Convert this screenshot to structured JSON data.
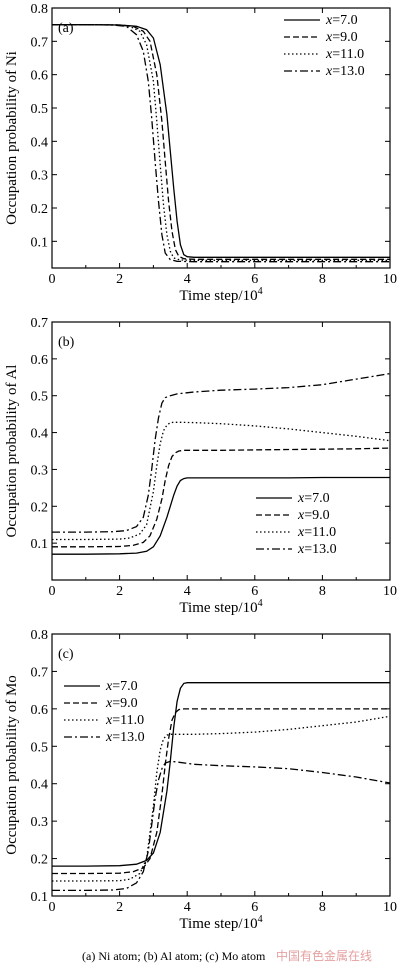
{
  "caption": "(a) Ni atom; (b) Al atom; (c) Mo atom",
  "watermark": "中国有色金属在线",
  "styles": {
    "dash_by_series": [
      "",
      "6,3",
      "1.5,2.5",
      "8,3,2,3"
    ]
  },
  "chart_data": [
    {
      "type": "line",
      "panel_label": "(a)",
      "xlabel_base": "Time step/10",
      "xlabel_exp": "4",
      "ylabel": "Occupation probability of Ni",
      "xlim": [
        0,
        10
      ],
      "ylim": [
        0.02,
        0.8
      ],
      "xticks": [
        0,
        2,
        4,
        6,
        8,
        10
      ],
      "yticks": [
        0.1,
        0.2,
        0.3,
        0.4,
        0.5,
        0.6,
        0.7,
        0.8
      ],
      "grid": false,
      "legend_position": "top-right",
      "series": [
        {
          "name_var": "x",
          "name_val": "=7.0",
          "x": [
            0,
            1,
            2,
            2.5,
            2.8,
            3.0,
            3.2,
            3.4,
            3.5,
            3.6,
            3.7,
            3.8,
            3.9,
            4.0,
            4.2,
            5,
            6,
            7,
            8,
            9,
            10
          ],
          "y": [
            0.75,
            0.75,
            0.749,
            0.745,
            0.735,
            0.71,
            0.63,
            0.48,
            0.37,
            0.26,
            0.16,
            0.09,
            0.06,
            0.054,
            0.052,
            0.052,
            0.052,
            0.052,
            0.052,
            0.052,
            0.052
          ]
        },
        {
          "name_var": "x",
          "name_val": "=9.0",
          "x": [
            0,
            1,
            2,
            2.4,
            2.7,
            2.9,
            3.1,
            3.25,
            3.35,
            3.45,
            3.55,
            3.65,
            3.75,
            3.9,
            4.2,
            5,
            6,
            7,
            8,
            9,
            10
          ],
          "y": [
            0.75,
            0.75,
            0.749,
            0.745,
            0.73,
            0.7,
            0.6,
            0.46,
            0.34,
            0.22,
            0.13,
            0.075,
            0.055,
            0.048,
            0.046,
            0.046,
            0.046,
            0.046,
            0.046,
            0.046,
            0.046
          ]
        },
        {
          "name_var": "x",
          "name_val": "=11.0",
          "x": [
            0,
            1,
            2,
            2.3,
            2.6,
            2.8,
            3.0,
            3.1,
            3.2,
            3.3,
            3.4,
            3.5,
            3.6,
            3.8,
            4.2,
            5,
            6,
            7,
            8,
            9,
            10
          ],
          "y": [
            0.75,
            0.75,
            0.749,
            0.745,
            0.73,
            0.69,
            0.58,
            0.46,
            0.33,
            0.21,
            0.12,
            0.07,
            0.05,
            0.044,
            0.043,
            0.043,
            0.043,
            0.043,
            0.043,
            0.043,
            0.043
          ]
        },
        {
          "name_var": "x",
          "name_val": "=13.0",
          "x": [
            0,
            1,
            1.8,
            2.2,
            2.5,
            2.7,
            2.85,
            2.95,
            3.05,
            3.15,
            3.25,
            3.35,
            3.5,
            3.7,
            4.2,
            5,
            6,
            7,
            8,
            9,
            10
          ],
          "y": [
            0.75,
            0.75,
            0.749,
            0.745,
            0.72,
            0.67,
            0.58,
            0.47,
            0.34,
            0.22,
            0.12,
            0.065,
            0.045,
            0.04,
            0.039,
            0.039,
            0.039,
            0.039,
            0.039,
            0.039,
            0.039
          ]
        }
      ]
    },
    {
      "type": "line",
      "panel_label": "(b)",
      "xlabel_base": "Time step/10",
      "xlabel_exp": "4",
      "ylabel": "Occupation probability of Al",
      "xlim": [
        0,
        10
      ],
      "ylim": [
        0.0,
        0.7
      ],
      "xticks": [
        0,
        2,
        4,
        6,
        8,
        10
      ],
      "yticks": [
        0.1,
        0.2,
        0.3,
        0.4,
        0.5,
        0.6,
        0.7
      ],
      "grid": false,
      "legend_position": "bottom-right",
      "series": [
        {
          "name_var": "x",
          "name_val": "=7.0",
          "x": [
            0,
            1,
            2,
            2.5,
            2.8,
            3.0,
            3.2,
            3.4,
            3.5,
            3.6,
            3.7,
            3.8,
            3.9,
            4.0,
            4.2,
            5,
            6,
            7,
            8,
            9,
            10
          ],
          "y": [
            0.07,
            0.07,
            0.071,
            0.073,
            0.078,
            0.09,
            0.12,
            0.17,
            0.2,
            0.23,
            0.255,
            0.27,
            0.275,
            0.277,
            0.277,
            0.277,
            0.277,
            0.277,
            0.278,
            0.278,
            0.278
          ]
        },
        {
          "name_var": "x",
          "name_val": "=9.0",
          "x": [
            0,
            1,
            2,
            2.4,
            2.7,
            2.9,
            3.1,
            3.25,
            3.35,
            3.45,
            3.55,
            3.65,
            3.75,
            3.9,
            4.2,
            5,
            6,
            7,
            8,
            9,
            10
          ],
          "y": [
            0.09,
            0.09,
            0.091,
            0.094,
            0.102,
            0.12,
            0.165,
            0.22,
            0.27,
            0.31,
            0.335,
            0.345,
            0.35,
            0.352,
            0.352,
            0.352,
            0.353,
            0.354,
            0.355,
            0.356,
            0.358
          ]
        },
        {
          "name_var": "x",
          "name_val": "=11.0",
          "x": [
            0,
            1,
            2,
            2.3,
            2.6,
            2.8,
            3.0,
            3.1,
            3.2,
            3.3,
            3.4,
            3.5,
            3.6,
            3.8,
            4.2,
            5,
            6,
            7,
            8,
            9,
            10
          ],
          "y": [
            0.11,
            0.11,
            0.111,
            0.114,
            0.125,
            0.15,
            0.24,
            0.31,
            0.37,
            0.405,
            0.42,
            0.427,
            0.428,
            0.428,
            0.427,
            0.424,
            0.418,
            0.41,
            0.4,
            0.39,
            0.378
          ]
        },
        {
          "name_var": "x",
          "name_val": "=13.0",
          "x": [
            0,
            1,
            1.8,
            2.2,
            2.5,
            2.7,
            2.85,
            2.95,
            3.05,
            3.15,
            3.25,
            3.35,
            3.5,
            3.7,
            4.2,
            5,
            6,
            7,
            8,
            9,
            10
          ],
          "y": [
            0.13,
            0.13,
            0.131,
            0.134,
            0.145,
            0.17,
            0.23,
            0.3,
            0.38,
            0.44,
            0.48,
            0.495,
            0.5,
            0.505,
            0.51,
            0.515,
            0.518,
            0.522,
            0.53,
            0.545,
            0.56
          ]
        }
      ]
    },
    {
      "type": "line",
      "panel_label": "(c)",
      "xlabel_base": "Time step/10",
      "xlabel_exp": "4",
      "ylabel": "Occupation probability of Mo",
      "xlim": [
        0,
        10
      ],
      "ylim": [
        0.1,
        0.8
      ],
      "xticks": [
        0,
        2,
        4,
        6,
        8,
        10
      ],
      "yticks": [
        0.1,
        0.2,
        0.3,
        0.4,
        0.5,
        0.6,
        0.7,
        0.8
      ],
      "grid": false,
      "legend_position": "top-left",
      "series": [
        {
          "name_var": "x",
          "name_val": "=7.0",
          "x": [
            0,
            1,
            2,
            2.5,
            2.8,
            3.0,
            3.2,
            3.4,
            3.5,
            3.6,
            3.7,
            3.8,
            3.9,
            4.0,
            4.2,
            5,
            6,
            7,
            8,
            9,
            10
          ],
          "y": [
            0.18,
            0.18,
            0.181,
            0.185,
            0.195,
            0.215,
            0.27,
            0.38,
            0.46,
            0.55,
            0.62,
            0.655,
            0.668,
            0.67,
            0.67,
            0.67,
            0.67,
            0.67,
            0.67,
            0.67,
            0.67
          ]
        },
        {
          "name_var": "x",
          "name_val": "=9.0",
          "x": [
            0,
            1,
            2,
            2.4,
            2.7,
            2.9,
            3.1,
            3.25,
            3.35,
            3.45,
            3.55,
            3.65,
            3.75,
            3.9,
            4.2,
            5,
            6,
            7,
            8,
            9,
            10
          ],
          "y": [
            0.16,
            0.16,
            0.161,
            0.165,
            0.175,
            0.2,
            0.27,
            0.37,
            0.45,
            0.52,
            0.57,
            0.59,
            0.598,
            0.6,
            0.6,
            0.6,
            0.6,
            0.6,
            0.6,
            0.6,
            0.6
          ]
        },
        {
          "name_var": "x",
          "name_val": "=11.0",
          "x": [
            0,
            1,
            2,
            2.3,
            2.6,
            2.8,
            3.0,
            3.1,
            3.2,
            3.3,
            3.4,
            3.5,
            3.6,
            3.8,
            4.2,
            5,
            6,
            7,
            8,
            9,
            10
          ],
          "y": [
            0.14,
            0.14,
            0.141,
            0.145,
            0.16,
            0.2,
            0.34,
            0.43,
            0.49,
            0.52,
            0.53,
            0.532,
            0.532,
            0.532,
            0.532,
            0.534,
            0.538,
            0.545,
            0.555,
            0.565,
            0.58
          ]
        },
        {
          "name_var": "x",
          "name_val": "=13.0",
          "x": [
            0,
            1,
            1.8,
            2.2,
            2.5,
            2.7,
            2.85,
            2.95,
            3.05,
            3.15,
            3.25,
            3.35,
            3.5,
            3.7,
            4.2,
            5,
            6,
            7,
            8,
            9,
            10
          ],
          "y": [
            0.115,
            0.115,
            0.116,
            0.12,
            0.135,
            0.165,
            0.22,
            0.29,
            0.36,
            0.41,
            0.44,
            0.455,
            0.46,
            0.458,
            0.452,
            0.448,
            0.445,
            0.44,
            0.43,
            0.418,
            0.402
          ]
        }
      ]
    }
  ]
}
